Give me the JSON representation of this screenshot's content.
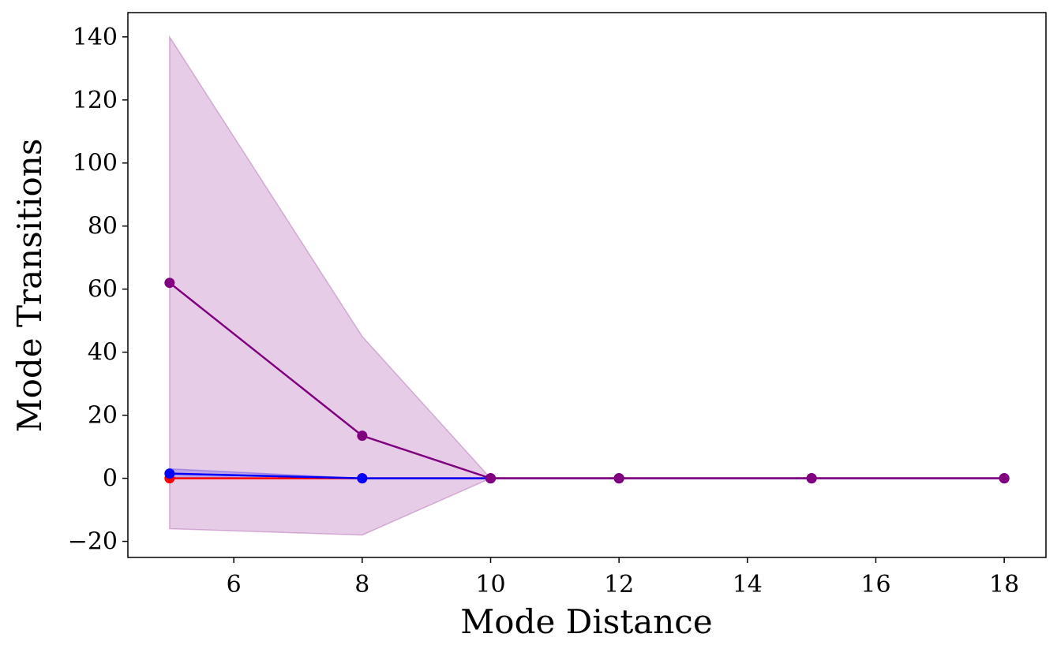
{
  "chart_data": {
    "type": "line",
    "title": "",
    "xlabel": "Mode Distance",
    "ylabel": "Mode Transitions",
    "xlim": [
      4.35,
      18.65
    ],
    "ylim": [
      -25.1,
      147.7
    ],
    "grid": false,
    "legend": "none",
    "x": [
      5,
      8,
      10,
      12,
      15,
      18
    ],
    "x_ticks": [
      6,
      8,
      10,
      12,
      14,
      16,
      18
    ],
    "x_tick_labels": [
      "6",
      "8",
      "10",
      "12",
      "14",
      "16",
      "18"
    ],
    "y_ticks": [
      -20,
      0,
      20,
      40,
      60,
      80,
      100,
      120,
      140
    ],
    "y_tick_labels": [
      "−20",
      "0",
      "20",
      "40",
      "60",
      "80",
      "100",
      "120",
      "140"
    ],
    "series": [
      {
        "name": "red",
        "color": "#ff0000",
        "values": [
          0,
          0,
          0,
          0,
          0,
          0
        ],
        "band_lower": [
          0,
          0,
          0,
          0,
          0,
          0
        ],
        "band_upper": [
          0,
          0,
          0,
          0,
          0,
          0
        ]
      },
      {
        "name": "blue",
        "color": "#0000ff",
        "values": [
          1.5,
          0,
          0,
          0,
          0,
          0
        ],
        "band_lower": [
          0,
          0,
          0,
          0,
          0,
          0
        ],
        "band_upper": [
          3,
          0,
          0,
          0,
          0,
          0
        ]
      },
      {
        "name": "purple",
        "color": "#800080",
        "values": [
          62,
          13.5,
          0,
          0,
          0,
          0
        ],
        "band_lower": [
          -16,
          -18,
          0,
          0,
          0,
          0
        ],
        "band_upper": [
          140,
          45,
          0,
          0,
          0,
          0
        ]
      }
    ]
  }
}
